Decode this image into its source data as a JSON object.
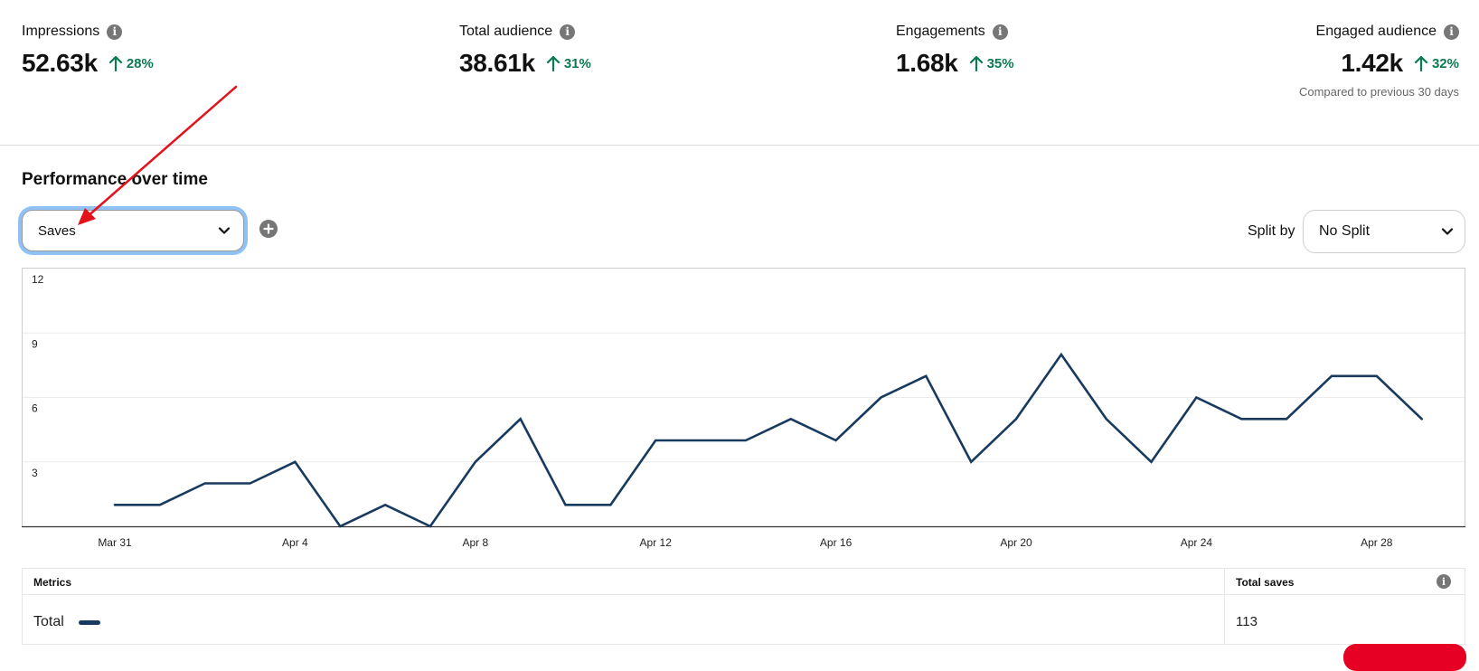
{
  "stats": [
    {
      "label": "Impressions",
      "value": "52.63k",
      "change": "28%"
    },
    {
      "label": "Total audience",
      "value": "38.61k",
      "change": "31%"
    },
    {
      "label": "Engagements",
      "value": "1.68k",
      "change": "35%"
    },
    {
      "label": "Engaged audience",
      "value": "1.42k",
      "change": "32%"
    }
  ],
  "compare_note": "Compared to previous 30 days",
  "performance": {
    "title": "Performance over time",
    "metric_select": {
      "value": "Saves"
    },
    "split_by": {
      "label": "Split by",
      "value": "No Split"
    }
  },
  "chart_data": {
    "type": "line",
    "x": [
      "Mar 31",
      "Apr 1",
      "Apr 2",
      "Apr 3",
      "Apr 4",
      "Apr 5",
      "Apr 6",
      "Apr 7",
      "Apr 8",
      "Apr 9",
      "Apr 10",
      "Apr 11",
      "Apr 12",
      "Apr 13",
      "Apr 14",
      "Apr 15",
      "Apr 16",
      "Apr 17",
      "Apr 18",
      "Apr 19",
      "Apr 20",
      "Apr 21",
      "Apr 22",
      "Apr 23",
      "Apr 24",
      "Apr 25",
      "Apr 26",
      "Apr 27",
      "Apr 28",
      "Apr 29"
    ],
    "xtick_labels": [
      "Mar 31",
      "Apr 4",
      "Apr 8",
      "Apr 12",
      "Apr 16",
      "Apr 20",
      "Apr 24",
      "Apr 28"
    ],
    "series": [
      {
        "values": [
          1,
          1,
          2,
          2,
          3,
          0,
          1,
          0,
          3,
          5,
          1,
          1,
          4,
          4,
          4,
          5,
          4,
          6,
          7,
          3,
          5,
          8,
          5,
          3,
          6,
          5,
          5,
          7,
          7,
          5
        ]
      }
    ],
    "yticks": [
      3,
      6,
      9,
      12
    ],
    "ylim": [
      0,
      12
    ],
    "grid": true,
    "line_color": "#173a5e"
  },
  "metrics_table": {
    "header_metrics": "Metrics",
    "header_total": "Total saves",
    "row_label": "Total",
    "row_value": "113",
    "swatch_color": "#173a5e"
  },
  "info_icon_glyph": "i",
  "colors": {
    "positive_change": "#0a7a51",
    "focus_ring": "#8fc1f5",
    "annotation_arrow": "#e3121c",
    "brand_red": "#e60023"
  }
}
